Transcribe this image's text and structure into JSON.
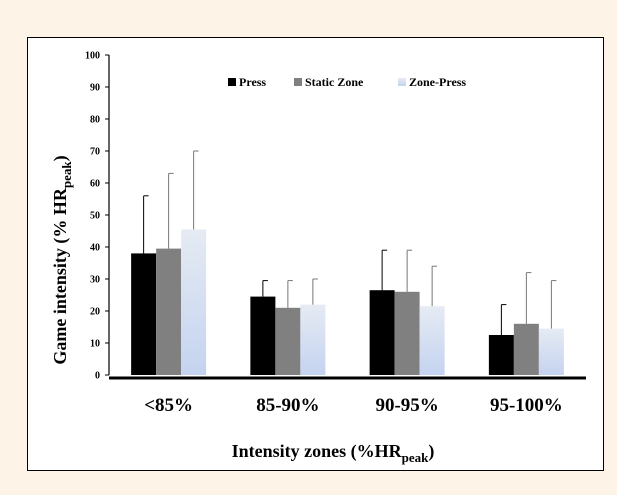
{
  "chart_data": {
    "type": "bar",
    "title": "",
    "xlabel": "Intensity zones (%HR",
    "xlabel_sub": "peak",
    "xlabel_close": ")",
    "ylabel": "Game intensity (% HR",
    "ylabel_sub": "peak",
    "ylabel_close": ")",
    "ylim": [
      0,
      100
    ],
    "yticks": [
      0,
      10,
      20,
      30,
      40,
      50,
      60,
      70,
      80,
      90,
      100
    ],
    "categories": [
      "<85%",
      "85-90%",
      "90-95%",
      "95-100%"
    ],
    "legend_position": "top-center",
    "grid": false,
    "series": [
      {
        "name": "Press",
        "color": "#000000",
        "values": [
          38,
          24.5,
          26.5,
          12.5
        ],
        "errors": [
          18,
          5,
          12.5,
          9.5
        ]
      },
      {
        "name": "Static Zone",
        "color": "#808080",
        "values": [
          39.5,
          21,
          26,
          16
        ],
        "errors": [
          23.5,
          8.5,
          13,
          16
        ]
      },
      {
        "name": "Zone-Press",
        "color": "#c9d7ef",
        "values": [
          45.5,
          22,
          21.5,
          14.5
        ],
        "errors": [
          24.5,
          8,
          12.5,
          15
        ]
      }
    ]
  }
}
